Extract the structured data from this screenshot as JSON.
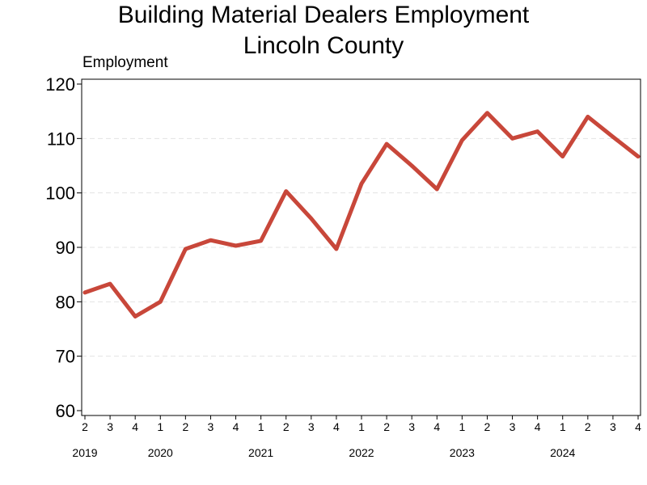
{
  "chart_data": {
    "type": "line",
    "title": "Building Material Dealers Employment",
    "subtitle": "Lincoln County",
    "ylabel": "Employment",
    "xlabel": "",
    "ylim": [
      60,
      120
    ],
    "yticks": [
      60,
      70,
      80,
      90,
      100,
      110,
      120
    ],
    "grid": true,
    "legend": "none",
    "line_color": "#c8473a",
    "categories": [
      "2",
      "3",
      "4",
      "1",
      "2",
      "3",
      "4",
      "1",
      "2",
      "3",
      "4",
      "1",
      "2",
      "3",
      "4",
      "1",
      "2",
      "3",
      "4",
      "1",
      "2",
      "3",
      "4"
    ],
    "years": [
      {
        "label": "2019",
        "index": 0
      },
      {
        "label": "2020",
        "index": 3
      },
      {
        "label": "2021",
        "index": 7
      },
      {
        "label": "2022",
        "index": 11
      },
      {
        "label": "2023",
        "index": 15
      },
      {
        "label": "2024",
        "index": 19
      }
    ],
    "series": [
      {
        "values": [
          81.7,
          83.3,
          77.3,
          80,
          89.7,
          91.3,
          90.3,
          91.2,
          100.3,
          95.3,
          89.7,
          101.7,
          109,
          105,
          100.7,
          109.7,
          114.7,
          110,
          111.3,
          106.7,
          114,
          110.3,
          106.7
        ]
      }
    ]
  }
}
